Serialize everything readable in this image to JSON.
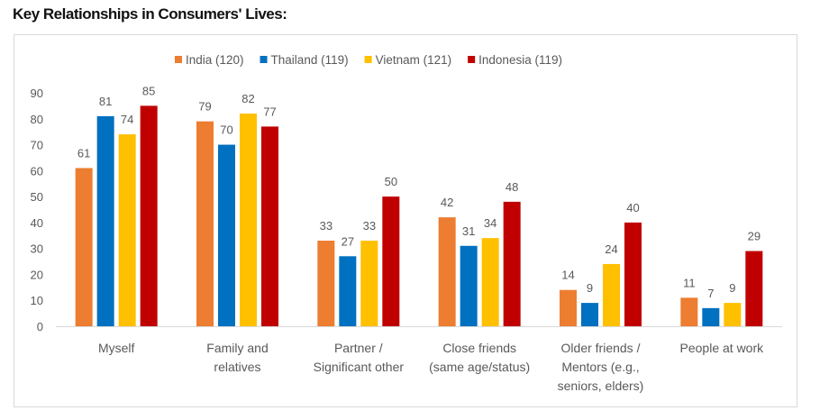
{
  "chart_data": {
    "type": "bar",
    "title": "Key Relationships in Consumers' Lives:",
    "categories": [
      [
        "Myself"
      ],
      [
        "Family and",
        "relatives"
      ],
      [
        "Partner /",
        "Significant other"
      ],
      [
        "Close friends",
        "(same age/status)"
      ],
      [
        "Older friends /",
        "Mentors (e.g.,",
        "seniors, elders)"
      ],
      [
        "People at work"
      ]
    ],
    "series": [
      {
        "name": "India (120)",
        "color": "#ED7D31",
        "values": [
          61,
          79,
          33,
          42,
          14,
          11
        ]
      },
      {
        "name": "Thailand (119)",
        "color": "#0070C0",
        "values": [
          81,
          70,
          27,
          31,
          9,
          7
        ]
      },
      {
        "name": "Vietnam (121)",
        "color": "#FFC000",
        "values": [
          74,
          82,
          33,
          34,
          24,
          9
        ]
      },
      {
        "name": "Indonesia (119)",
        "color": "#C00000",
        "values": [
          85,
          77,
          50,
          48,
          40,
          29
        ]
      }
    ],
    "yticks": [
      0,
      10,
      20,
      30,
      40,
      50,
      60,
      70,
      80,
      90
    ],
    "ylim": [
      0,
      90
    ],
    "grid": false,
    "legend": "top-center",
    "data_labels": true
  }
}
